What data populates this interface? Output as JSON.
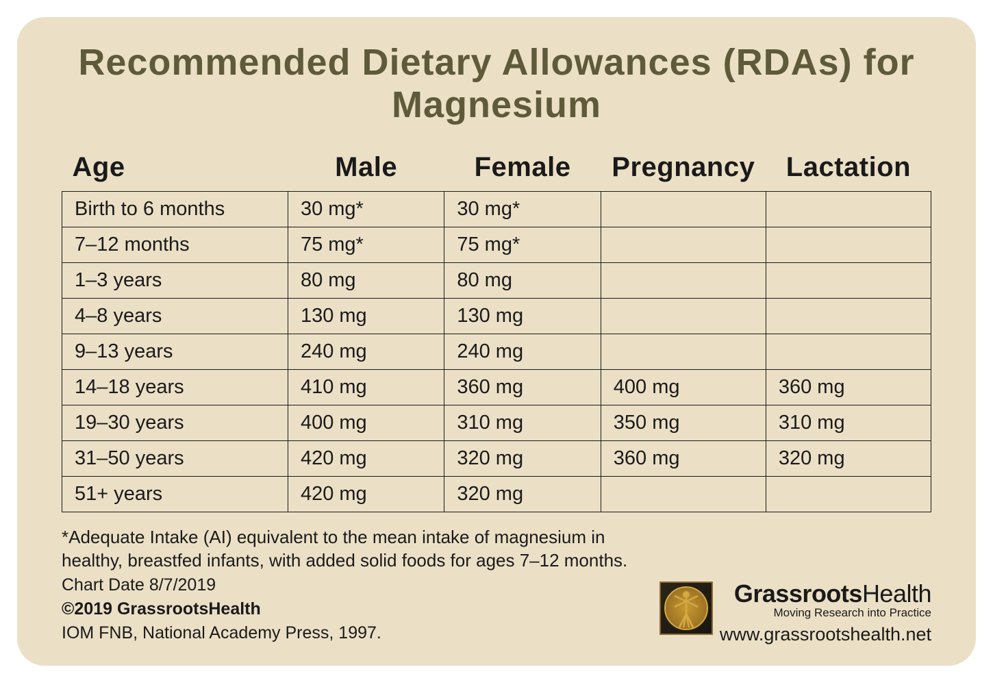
{
  "title": "Recommended Dietary Allowances (RDAs) for Magnesium",
  "table": {
    "columns": [
      "Age",
      "Male",
      "Female",
      "Pregnancy",
      "Lactation"
    ],
    "rows": [
      [
        "Birth to 6 months",
        "30 mg*",
        "30 mg*",
        "",
        ""
      ],
      [
        "7–12 months",
        "75 mg*",
        "75 mg*",
        "",
        ""
      ],
      [
        "1–3 years",
        "80 mg",
        "80 mg",
        "",
        ""
      ],
      [
        "4–8 years",
        "130 mg",
        "130 mg",
        "",
        ""
      ],
      [
        "9–13 years",
        "240 mg",
        "240 mg",
        "",
        ""
      ],
      [
        "14–18 years",
        "410 mg",
        "360 mg",
        "400 mg",
        "360 mg"
      ],
      [
        "19–30 years",
        "400 mg",
        "310 mg",
        "350 mg",
        "310 mg"
      ],
      [
        "31–50 years",
        "420 mg",
        "320 mg",
        "360 mg",
        "320 mg"
      ],
      [
        "51+ years",
        "420 mg",
        "320 mg",
        "",
        ""
      ]
    ],
    "column_widths": [
      "26%",
      "18%",
      "18%",
      "19%",
      "19%"
    ],
    "border_color": "#1a1a1a",
    "header_fontsize": 40,
    "cell_fontsize": 29
  },
  "footnote_line1": "*Adequate Intake (AI) equivalent to the mean intake of magnesium in",
  "footnote_line2": "healthy, breastfed infants, with added solid foods for ages 7–12 months.",
  "footer": {
    "chart_date": "Chart Date 8/7/2019",
    "copyright": "©2019 GrassrootsHealth",
    "source": "IOM FNB, National Academy Press, 1997.",
    "brand_bold": "Grassroots",
    "brand_light": "Health",
    "tagline": "Moving Research into Practice",
    "url": "www.grassrootshealth.net"
  },
  "colors": {
    "card_bg": "#ebe0c6",
    "title_color": "#5e5a3a",
    "text_color": "#1a1a1a",
    "logo_border": "#8a6d2f",
    "logo_gold": "#c89830"
  }
}
